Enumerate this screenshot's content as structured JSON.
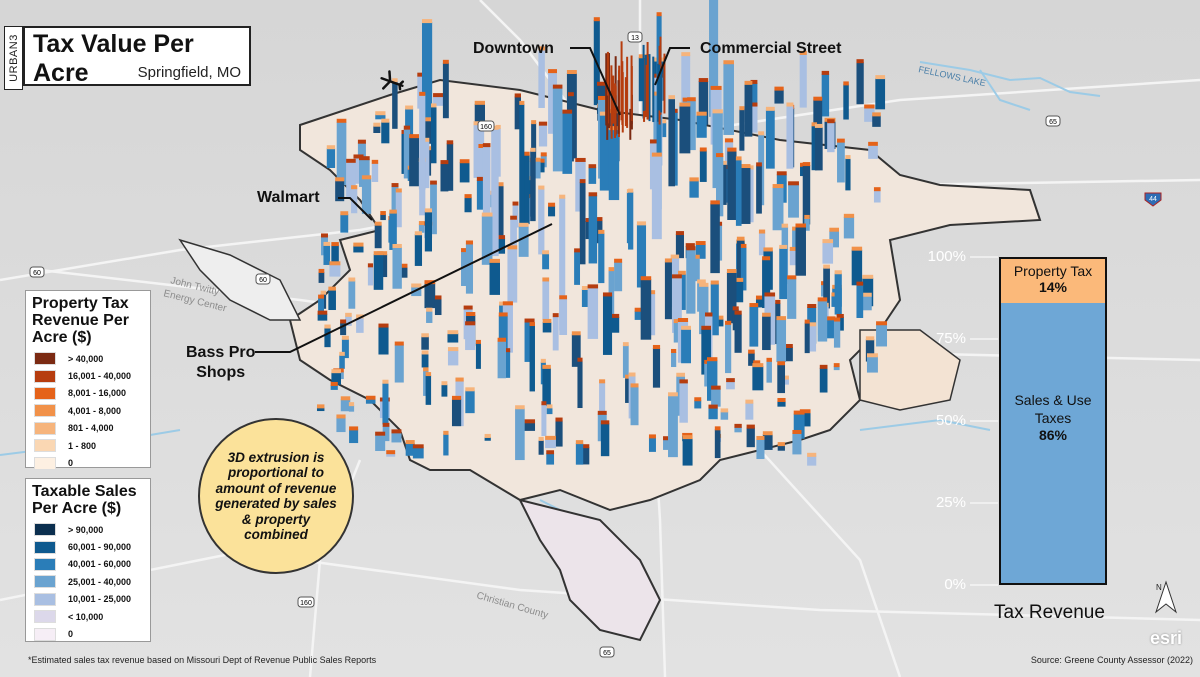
{
  "brand": "URBAN3",
  "title": "Tax Value Per Acre",
  "subtitle": "Springfield, MO",
  "callouts": {
    "downtown": "Downtown",
    "commercial": "Commercial Street",
    "walmart": "Walmart",
    "basspro_l1": "Bass Pro",
    "basspro_l2": "Shops"
  },
  "map_labels": {
    "fellows_lake": "FELLOWS LAKE",
    "john_twitty_l1": "John Twitty",
    "john_twitty_l2": "Energy Center",
    "christian_county": "Christian County",
    "road_13": "13",
    "road_160_n": "160",
    "road_160_s": "160",
    "road_65_n": "65",
    "road_65_s": "65",
    "road_60_w": "60",
    "road_60_c": "60",
    "road_44": "44"
  },
  "legend_property": {
    "title_lines": [
      "Property Tax",
      "Revenue Per",
      "Acre ($)"
    ],
    "items": [
      {
        "label": "> 40,000",
        "color": "#7b2a12"
      },
      {
        "label": "16,001 - 40,000",
        "color": "#b63d0f"
      },
      {
        "label": "8,001 - 16,000",
        "color": "#e5631a"
      },
      {
        "label": "4,001 - 8,000",
        "color": "#f19149"
      },
      {
        "label": "801 - 4,000",
        "color": "#f6b47c"
      },
      {
        "label": "1 - 800",
        "color": "#fad7b3"
      },
      {
        "label": "0",
        "color": "#fdf0e2"
      }
    ]
  },
  "legend_sales": {
    "title_lines": [
      "Taxable Sales",
      "Per Acre ($)"
    ],
    "items": [
      {
        "label": "> 90,000",
        "color": "#0b2f4f"
      },
      {
        "label": "60,001 - 90,000",
        "color": "#0f5a8f"
      },
      {
        "label": "40,001 - 60,000",
        "color": "#2a7db8"
      },
      {
        "label": "25,001 - 40,000",
        "color": "#6aa3d0"
      },
      {
        "label": "10,001 - 25,000",
        "color": "#a9bfe2"
      },
      {
        "label": "< 10,000",
        "color": "#dcd8ea"
      },
      {
        "label": "0",
        "color": "#f6eef6"
      }
    ]
  },
  "circle_note": "3D extrusion is proportional to amount of revenue generated by sales & property combined",
  "chart_data": {
    "type": "bar",
    "title": "Tax Revenue",
    "y_ticks": [
      "100%",
      "75%",
      "50%",
      "25%",
      "0%"
    ],
    "ylim": [
      0,
      100
    ],
    "series": [
      {
        "name": "Sales & Use Taxes",
        "value": 86,
        "label": "86%",
        "color": "#6ea7d6"
      },
      {
        "name": "Property Tax",
        "value": 14,
        "label": "14%",
        "color": "#fbb97a"
      }
    ]
  },
  "footnote": "*Estimated sales tax revenue based on Missouri Dept of Revenue Public Sales Reports",
  "source": "Source: Greene County Assessor (2022)",
  "north_label": "N",
  "esri_label": "esri"
}
